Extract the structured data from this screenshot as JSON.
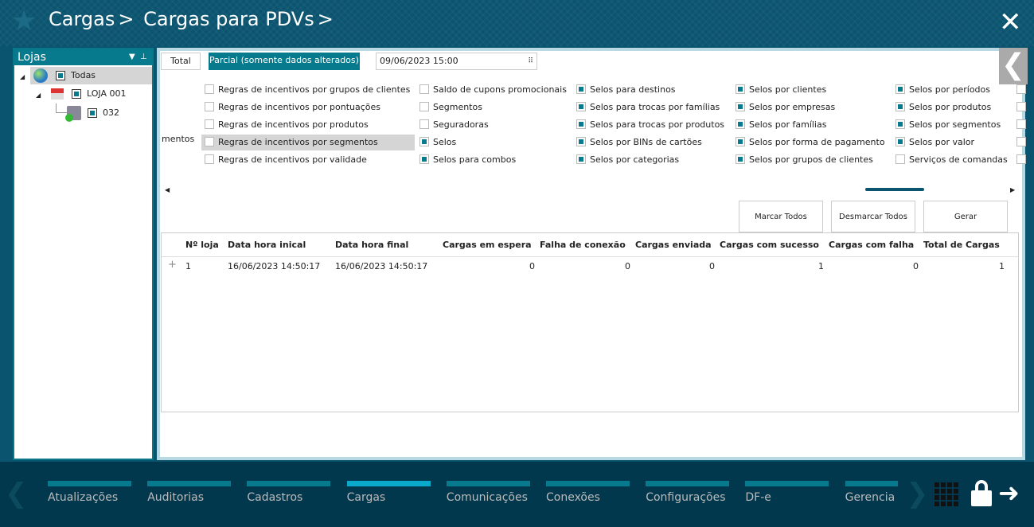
{
  "header": {
    "breadcrumb": [
      "Cargas",
      "Cargas para PDVs"
    ],
    "separator": ">"
  },
  "left_panel": {
    "title": "Lojas",
    "tree": [
      {
        "label": "Todas",
        "icon": "globe-icon"
      },
      {
        "label": "LOJA 001",
        "icon": "store-icon"
      },
      {
        "label": "032",
        "icon": "pdv-icon"
      }
    ]
  },
  "tabs": {
    "total": "Total",
    "parcial": "Parcial (somente dados alterados)",
    "date": "09/06/2023 15:00"
  },
  "options": {
    "partial_label": "mentos",
    "columns": [
      [
        {
          "l": "Regras de incentivos por grupos de clientes",
          "c": false
        },
        {
          "l": "Regras de incentivos por pontuações",
          "c": false
        },
        {
          "l": "Regras de incentivos por produtos",
          "c": false
        },
        {
          "l": "Regras de incentivos por segmentos",
          "c": false
        },
        {
          "l": "Regras de incentivos por validade",
          "c": false
        }
      ],
      [
        {
          "l": "Saldo de cupons promocionais",
          "c": false
        },
        {
          "l": "Segmentos",
          "c": false
        },
        {
          "l": "Seguradoras",
          "c": false
        },
        {
          "l": "Selos",
          "c": true
        },
        {
          "l": "Selos para combos",
          "c": true
        }
      ],
      [
        {
          "l": "Selos para destinos",
          "c": true
        },
        {
          "l": "Selos para trocas por famílias",
          "c": true
        },
        {
          "l": "Selos para trocas por produtos",
          "c": true
        },
        {
          "l": "Selos por BINs de cartões",
          "c": true
        },
        {
          "l": "Selos por categorias",
          "c": true
        }
      ],
      [
        {
          "l": "Selos por clientes",
          "c": true
        },
        {
          "l": "Selos por empresas",
          "c": true
        },
        {
          "l": "Selos por famílias",
          "c": true
        },
        {
          "l": "Selos por forma de pagamento",
          "c": true
        },
        {
          "l": "Selos por grupos de clientes",
          "c": true
        }
      ],
      [
        {
          "l": "Selos por períodos",
          "c": true
        },
        {
          "l": "Selos por produtos",
          "c": true
        },
        {
          "l": "Selos por segmentos",
          "c": true
        },
        {
          "l": "Selos por valor",
          "c": true
        },
        {
          "l": "Serviços de comandas",
          "c": false
        }
      ]
    ]
  },
  "buttons": {
    "marcar": "Marcar Todos",
    "desmarcar": "Desmarcar Todos",
    "gerar": "Gerar"
  },
  "table": {
    "headers": [
      "Nº loja",
      "Data hora inical",
      "Data hora final",
      "Cargas em espera",
      "Falha de conexão",
      "Cargas enviada",
      "Cargas com sucesso",
      "Cargas com falha",
      "Total de Cargas"
    ],
    "rows": [
      [
        "1",
        "16/06/2023 14:50:17",
        "16/06/2023 14:50:17",
        "0",
        "0",
        "0",
        "1",
        "0",
        "1"
      ]
    ]
  },
  "footer": {
    "items": [
      "Atualizações",
      "Auditorias",
      "Cadastros",
      "Cargas",
      "Comunicações",
      "Conexões",
      "Configurações",
      "DF-e",
      "Gerencia"
    ],
    "active": "Cargas"
  },
  "colors": {
    "header": "#0b5470",
    "accent": "#087a8d",
    "footer": "#02384d",
    "active_tab": "#0aa8cb"
  }
}
